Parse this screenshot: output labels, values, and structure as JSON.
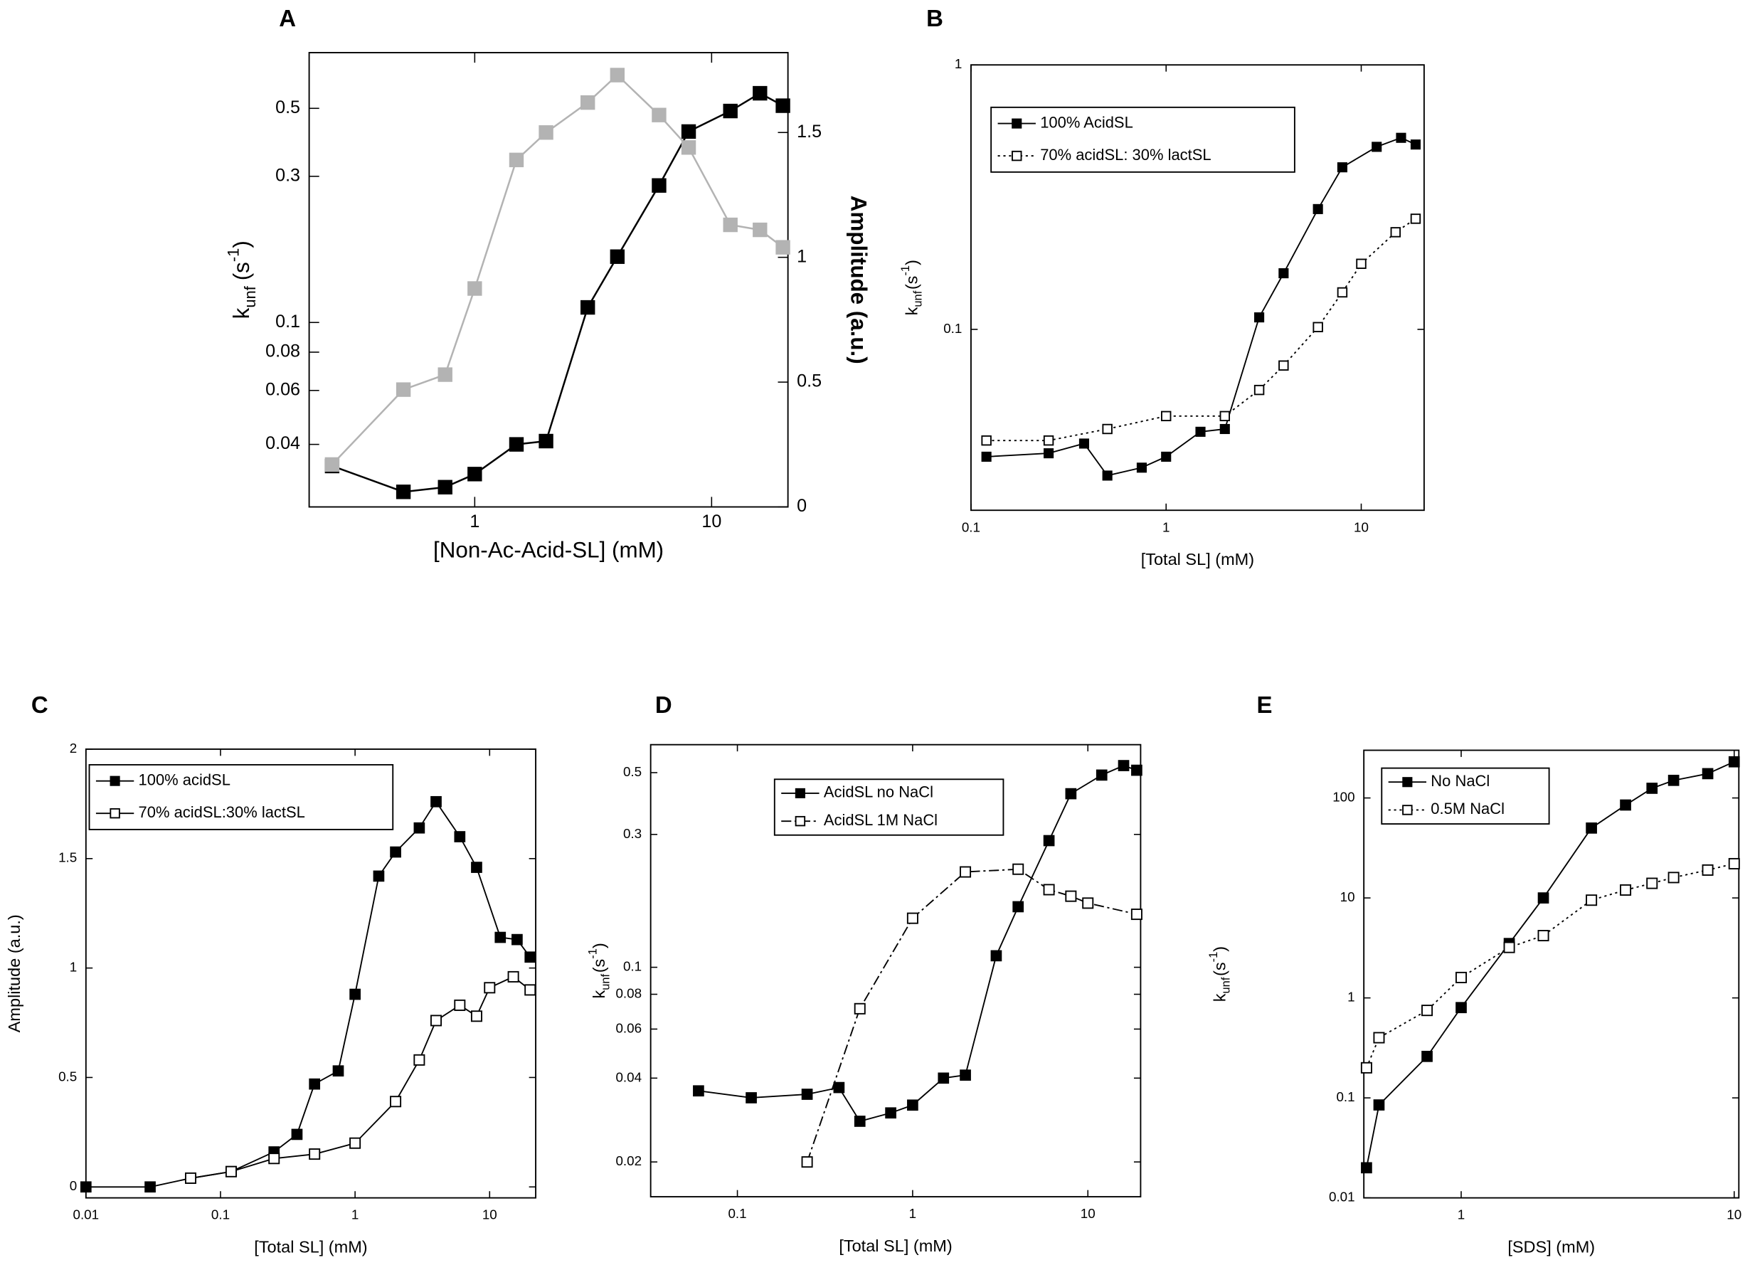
{
  "chart_data": [
    {
      "type": "line",
      "label": "A",
      "xlabel": "[Non-Ac-Acid-SL] (mM)",
      "ylabel": {
        "base": "k",
        "sub": "unf",
        "unit": "(s",
        "sup": "-1",
        "close": ")"
      },
      "y2label": "Amplitude (a.u.)",
      "xscale": "log",
      "yscale": "log",
      "y2scale": "linear",
      "xlim": [
        0.2,
        21
      ],
      "ylim": [
        0.025,
        0.76
      ],
      "y2lim": [
        0,
        1.82
      ],
      "xticks": [
        1,
        10
      ],
      "yticks": [
        0.04,
        0.06,
        0.08,
        0.1,
        0.3,
        0.5
      ],
      "y2ticks": [
        0,
        0.5,
        1,
        1.5
      ],
      "series": [
        {
          "name": null,
          "color": "#000000",
          "marker": "filled",
          "line_style": "solid",
          "axis": "y",
          "x": [
            0.25,
            0.5,
            0.75,
            1,
            1.5,
            2,
            3,
            4,
            6,
            8,
            12,
            16,
            20
          ],
          "values": [
            0.034,
            0.028,
            0.029,
            0.032,
            0.04,
            0.041,
            0.112,
            0.164,
            0.28,
            0.42,
            0.49,
            0.56,
            0.51
          ]
        },
        {
          "name": null,
          "color": "#b3b3b3",
          "marker": "filled",
          "line_style": "solid",
          "axis": "y2",
          "x": [
            0.25,
            0.5,
            0.75,
            1,
            1.5,
            2,
            3,
            4,
            6,
            8,
            12,
            16,
            20
          ],
          "values": [
            0.17,
            0.47,
            0.53,
            0.875,
            1.39,
            1.5,
            1.62,
            1.73,
            1.57,
            1.44,
            1.13,
            1.11,
            1.04
          ]
        }
      ]
    },
    {
      "type": "line",
      "label": "B",
      "xlabel": "[Total SL] (mM)",
      "ylabel": {
        "base": "k",
        "sub": "unf",
        "unit": "(s",
        "sup": "-1",
        "close": ")"
      },
      "xscale": "log",
      "yscale": "log",
      "xlim": [
        0.1,
        21
      ],
      "ylim": [
        0.0207,
        1
      ],
      "xticks": [
        0.1,
        1,
        10
      ],
      "yticks": [
        0.1,
        1
      ],
      "series": [
        {
          "name": "100% AcidSL",
          "color": "#000000",
          "marker": "filled",
          "line_style": "solid",
          "x": [
            0.12,
            0.25,
            0.38,
            0.5,
            0.75,
            1,
            1.5,
            2,
            3,
            4,
            6,
            8,
            12,
            16,
            19
          ],
          "values": [
            0.033,
            0.034,
            0.037,
            0.028,
            0.03,
            0.033,
            0.041,
            0.042,
            0.111,
            0.163,
            0.285,
            0.41,
            0.49,
            0.53,
            0.5
          ]
        },
        {
          "name": "70% acidSL: 30% lactSL",
          "color": "#000000",
          "marker": "open",
          "line_style": "dotted",
          "x": [
            0.12,
            0.25,
            0.5,
            1,
            2,
            3,
            4,
            6,
            8,
            10,
            15,
            19
          ],
          "values": [
            0.038,
            0.038,
            0.042,
            0.047,
            0.047,
            0.059,
            0.073,
            0.102,
            0.138,
            0.177,
            0.233,
            0.262
          ]
        }
      ]
    },
    {
      "type": "line",
      "label": "C",
      "xlabel": "[Total SL] (mM)",
      "ylabel": "Amplitude (a.u.)",
      "xscale": "log",
      "yscale": "linear",
      "xlim": [
        0.01,
        22
      ],
      "ylim": [
        -0.05,
        2
      ],
      "xticks": [
        0.01,
        0.1,
        1,
        10
      ],
      "yticks": [
        0,
        0.5,
        1,
        1.5,
        2
      ],
      "series": [
        {
          "name": "100% acidSL",
          "color": "#000000",
          "marker": "filled",
          "line_style": "solid",
          "x": [
            0.01,
            0.03,
            0.06,
            0.12,
            0.25,
            0.37,
            0.5,
            0.75,
            1,
            1.5,
            2,
            3,
            4,
            6,
            8,
            12,
            16,
            20
          ],
          "values": [
            0,
            0,
            0.04,
            0.07,
            0.16,
            0.24,
            0.47,
            0.53,
            0.88,
            1.42,
            1.53,
            1.64,
            1.76,
            1.6,
            1.46,
            1.14,
            1.13,
            1.05
          ]
        },
        {
          "name": "70% acidSL:30% lactSL",
          "color": "#000000",
          "marker": "open",
          "line_style": "solid",
          "x": [
            0.06,
            0.12,
            0.25,
            0.5,
            1,
            2,
            3,
            4,
            6,
            8,
            10,
            15,
            20
          ],
          "values": [
            0.04,
            0.07,
            0.13,
            0.15,
            0.2,
            0.39,
            0.58,
            0.76,
            0.83,
            0.78,
            0.91,
            0.96,
            0.9
          ]
        }
      ]
    },
    {
      "type": "line",
      "label": "D",
      "xlabel": "[Total SL] (mM)",
      "ylabel": {
        "base": "k",
        "sub": "unf",
        "unit": "(s",
        "sup": "-1",
        "close": ")"
      },
      "xscale": "log",
      "yscale": "log",
      "xlim": [
        0.032,
        20
      ],
      "ylim": [
        0.015,
        0.63
      ],
      "xticks": [
        0.1,
        1,
        10
      ],
      "yticks": [
        0.02,
        0.04,
        0.06,
        0.08,
        0.1,
        0.3,
        0.5
      ],
      "series": [
        {
          "name": "AcidSL no NaCl",
          "color": "#000000",
          "marker": "filled",
          "line_style": "solid",
          "x": [
            0.06,
            0.12,
            0.25,
            0.38,
            0.5,
            0.75,
            1,
            1.5,
            2,
            3,
            4,
            6,
            8,
            12,
            16,
            19
          ],
          "values": [
            0.036,
            0.034,
            0.035,
            0.037,
            0.028,
            0.03,
            0.032,
            0.04,
            0.041,
            0.11,
            0.165,
            0.285,
            0.42,
            0.49,
            0.53,
            0.51
          ]
        },
        {
          "name": "AcidSL 1M NaCl",
          "color": "#000000",
          "marker": "open",
          "line_style": "dashdot",
          "x": [
            0.25,
            0.5,
            1,
            2,
            4,
            6,
            8,
            10,
            19
          ],
          "values": [
            0.02,
            0.071,
            0.15,
            0.22,
            0.225,
            0.19,
            0.18,
            0.17,
            0.155
          ]
        }
      ]
    },
    {
      "type": "line",
      "label": "E",
      "xlabel": "[SDS] (mM)",
      "ylabel": {
        "base": "k",
        "sub": "unf",
        "unit": "(s",
        "sup": "-1",
        "close": ")"
      },
      "xscale": "log",
      "yscale": "log",
      "xlim": [
        0.44,
        10.4
      ],
      "ylim": [
        0.01,
        300
      ],
      "xticks": [
        1,
        10
      ],
      "yticks": [
        0.01,
        0.1,
        1,
        10,
        100
      ],
      "series": [
        {
          "name": "No NaCl",
          "color": "#000000",
          "marker": "filled",
          "line_style": "solid",
          "x": [
            0.45,
            0.5,
            0.75,
            1,
            1.5,
            2,
            3,
            4,
            5,
            6,
            8,
            10
          ],
          "values": [
            0.02,
            0.085,
            0.26,
            0.8,
            3.5,
            10,
            50,
            85,
            125,
            150,
            175,
            230
          ]
        },
        {
          "name": "0.5M NaCl",
          "color": "#000000",
          "marker": "open",
          "line_style": "dotted",
          "x": [
            0.45,
            0.5,
            0.75,
            1,
            1.5,
            2,
            3,
            4,
            5,
            6,
            8,
            10
          ],
          "values": [
            0.2,
            0.4,
            0.75,
            1.6,
            3.2,
            4.2,
            9.5,
            12,
            14,
            16,
            19,
            22
          ]
        }
      ]
    }
  ]
}
